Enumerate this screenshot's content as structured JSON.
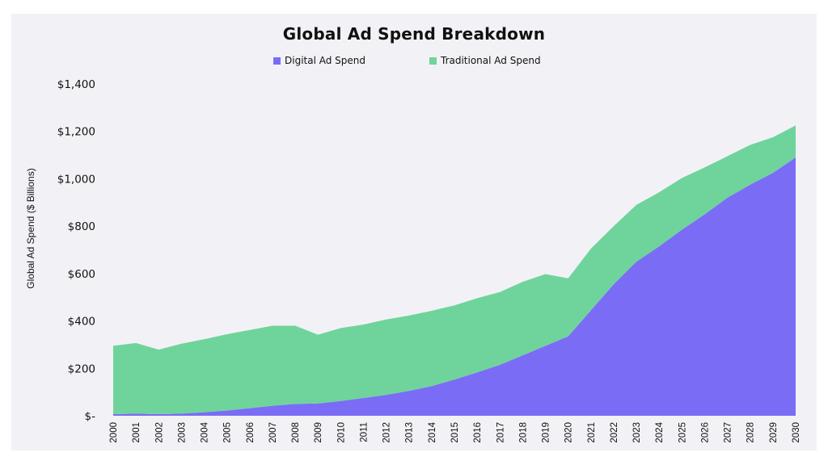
{
  "chart_data": {
    "type": "area",
    "stacked": true,
    "title": "Global Ad Spend Breakdown",
    "ylabel": "Global Ad Spend ($ Billions)",
    "xlabel": "",
    "legend_position": "top",
    "ylim": [
      0,
      1400
    ],
    "y_ticks": [
      0,
      200,
      400,
      600,
      800,
      1000,
      1200,
      1400
    ],
    "y_tick_labels": [
      "$-",
      "$200",
      "$400",
      "$600",
      "$800",
      "$1,000",
      "$1,200",
      "$1,400"
    ],
    "categories": [
      "2000",
      "2001",
      "2002",
      "2003",
      "2004",
      "2005",
      "2006",
      "2007",
      "2008",
      "2009",
      "2010",
      "2011",
      "2012",
      "2013",
      "2014",
      "2015",
      "2016",
      "2017",
      "2018",
      "2019",
      "2020",
      "2021",
      "2022",
      "2023",
      "2024",
      "2025",
      "2026",
      "2027",
      "2028",
      "2029",
      "2030"
    ],
    "series": [
      {
        "name": "Digital Ad Spend",
        "color": "#7b6cf6",
        "values": [
          7,
          9,
          7,
          9,
          15,
          22,
          32,
          42,
          50,
          52,
          62,
          75,
          88,
          105,
          125,
          153,
          183,
          215,
          255,
          295,
          335,
          445,
          555,
          650,
          715,
          785,
          850,
          920,
          975,
          1025,
          1090
        ]
      },
      {
        "name": "Traditional Ad Spend",
        "color": "#6fd49b",
        "values": [
          288,
          298,
          272,
          295,
          308,
          322,
          330,
          338,
          330,
          290,
          308,
          310,
          318,
          318,
          318,
          313,
          313,
          307,
          310,
          303,
          245,
          260,
          245,
          240,
          228,
          218,
          198,
          175,
          168,
          150,
          135
        ]
      }
    ]
  }
}
